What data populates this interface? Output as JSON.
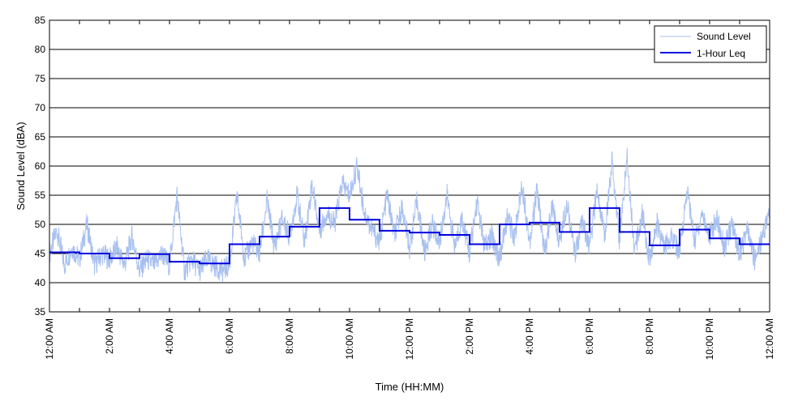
{
  "chart_data": {
    "type": "line",
    "title": "",
    "xlabel": "Time (HH:MM)",
    "ylabel": "Sound Level (dBA)",
    "ylim": [
      35,
      85
    ],
    "xlim": [
      0,
      24
    ],
    "x_unit": "hours",
    "yticks": [
      35,
      40,
      45,
      50,
      55,
      60,
      65,
      70,
      75,
      80,
      85
    ],
    "xtick_labels": [
      "12:00 AM",
      "2:00 AM",
      "4:00 AM",
      "6:00 AM",
      "8:00 AM",
      "10:00 AM",
      "12:00 PM",
      "2:00 PM",
      "4:00 PM",
      "6:00 PM",
      "8:00 PM",
      "10:00 PM",
      "12:00 AM"
    ],
    "grid": "horizontal",
    "legend_position": "top-right",
    "series": [
      {
        "name": "Sound Level",
        "color": "#a8c0f0",
        "style": "line",
        "x": [
          0.0,
          0.25,
          0.5,
          0.75,
          1.0,
          1.25,
          1.5,
          1.75,
          2.0,
          2.25,
          2.5,
          2.75,
          3.0,
          3.25,
          3.5,
          3.75,
          4.0,
          4.25,
          4.5,
          4.75,
          5.0,
          5.25,
          5.5,
          5.75,
          6.0,
          6.25,
          6.5,
          6.75,
          7.0,
          7.25,
          7.5,
          7.75,
          8.0,
          8.25,
          8.5,
          8.75,
          9.0,
          9.25,
          9.5,
          9.75,
          10.0,
          10.25,
          10.5,
          10.75,
          11.0,
          11.25,
          11.5,
          11.75,
          12.0,
          12.25,
          12.5,
          12.75,
          13.0,
          13.25,
          13.5,
          13.75,
          14.0,
          14.25,
          14.5,
          14.75,
          15.0,
          15.25,
          15.5,
          15.75,
          16.0,
          16.25,
          16.5,
          16.75,
          17.0,
          17.25,
          17.5,
          17.75,
          18.0,
          18.25,
          18.5,
          18.75,
          19.0,
          19.25,
          19.5,
          19.75,
          20.0,
          20.25,
          20.5,
          20.75,
          21.0,
          21.25,
          21.5,
          21.75,
          22.0,
          22.25,
          22.5,
          22.75,
          23.0,
          23.25,
          23.5,
          23.75,
          24.0
        ],
        "y": [
          45,
          49,
          43,
          46,
          44,
          50,
          43,
          45,
          44,
          46,
          43,
          48,
          42,
          44,
          43,
          45,
          43,
          55,
          42,
          44,
          42,
          44,
          43,
          42,
          43,
          55,
          44,
          47,
          45,
          54,
          46,
          51,
          48,
          55,
          47,
          57,
          49,
          52,
          50,
          57,
          55,
          60,
          52,
          49,
          47,
          55,
          48,
          53,
          46,
          54,
          45,
          50,
          47,
          55,
          46,
          51,
          45,
          54,
          46,
          48,
          44,
          51,
          48,
          57,
          47,
          56,
          45,
          53,
          47,
          54,
          45,
          50,
          46,
          56,
          48,
          61,
          47,
          62,
          45,
          52,
          44,
          50,
          46,
          48,
          45,
          56,
          47,
          52,
          48,
          51,
          46,
          50,
          45,
          49,
          44,
          48,
          52
        ]
      },
      {
        "name": "1-Hour Leq",
        "color": "#0000dd",
        "style": "step",
        "x": [
          0,
          1,
          2,
          3,
          4,
          5,
          6,
          7,
          8,
          9,
          10,
          11,
          12,
          13,
          14,
          15,
          16,
          17,
          18,
          19,
          20,
          21,
          22,
          23,
          24
        ],
        "y": [
          45.2,
          45.0,
          44.2,
          44.9,
          43.6,
          43.3,
          46.6,
          47.9,
          49.6,
          52.8,
          50.8,
          48.9,
          48.6,
          48.2,
          46.6,
          50.0,
          50.3,
          48.7,
          52.8,
          48.7,
          46.4,
          49.1,
          47.6,
          46.6,
          46.6
        ]
      }
    ]
  }
}
